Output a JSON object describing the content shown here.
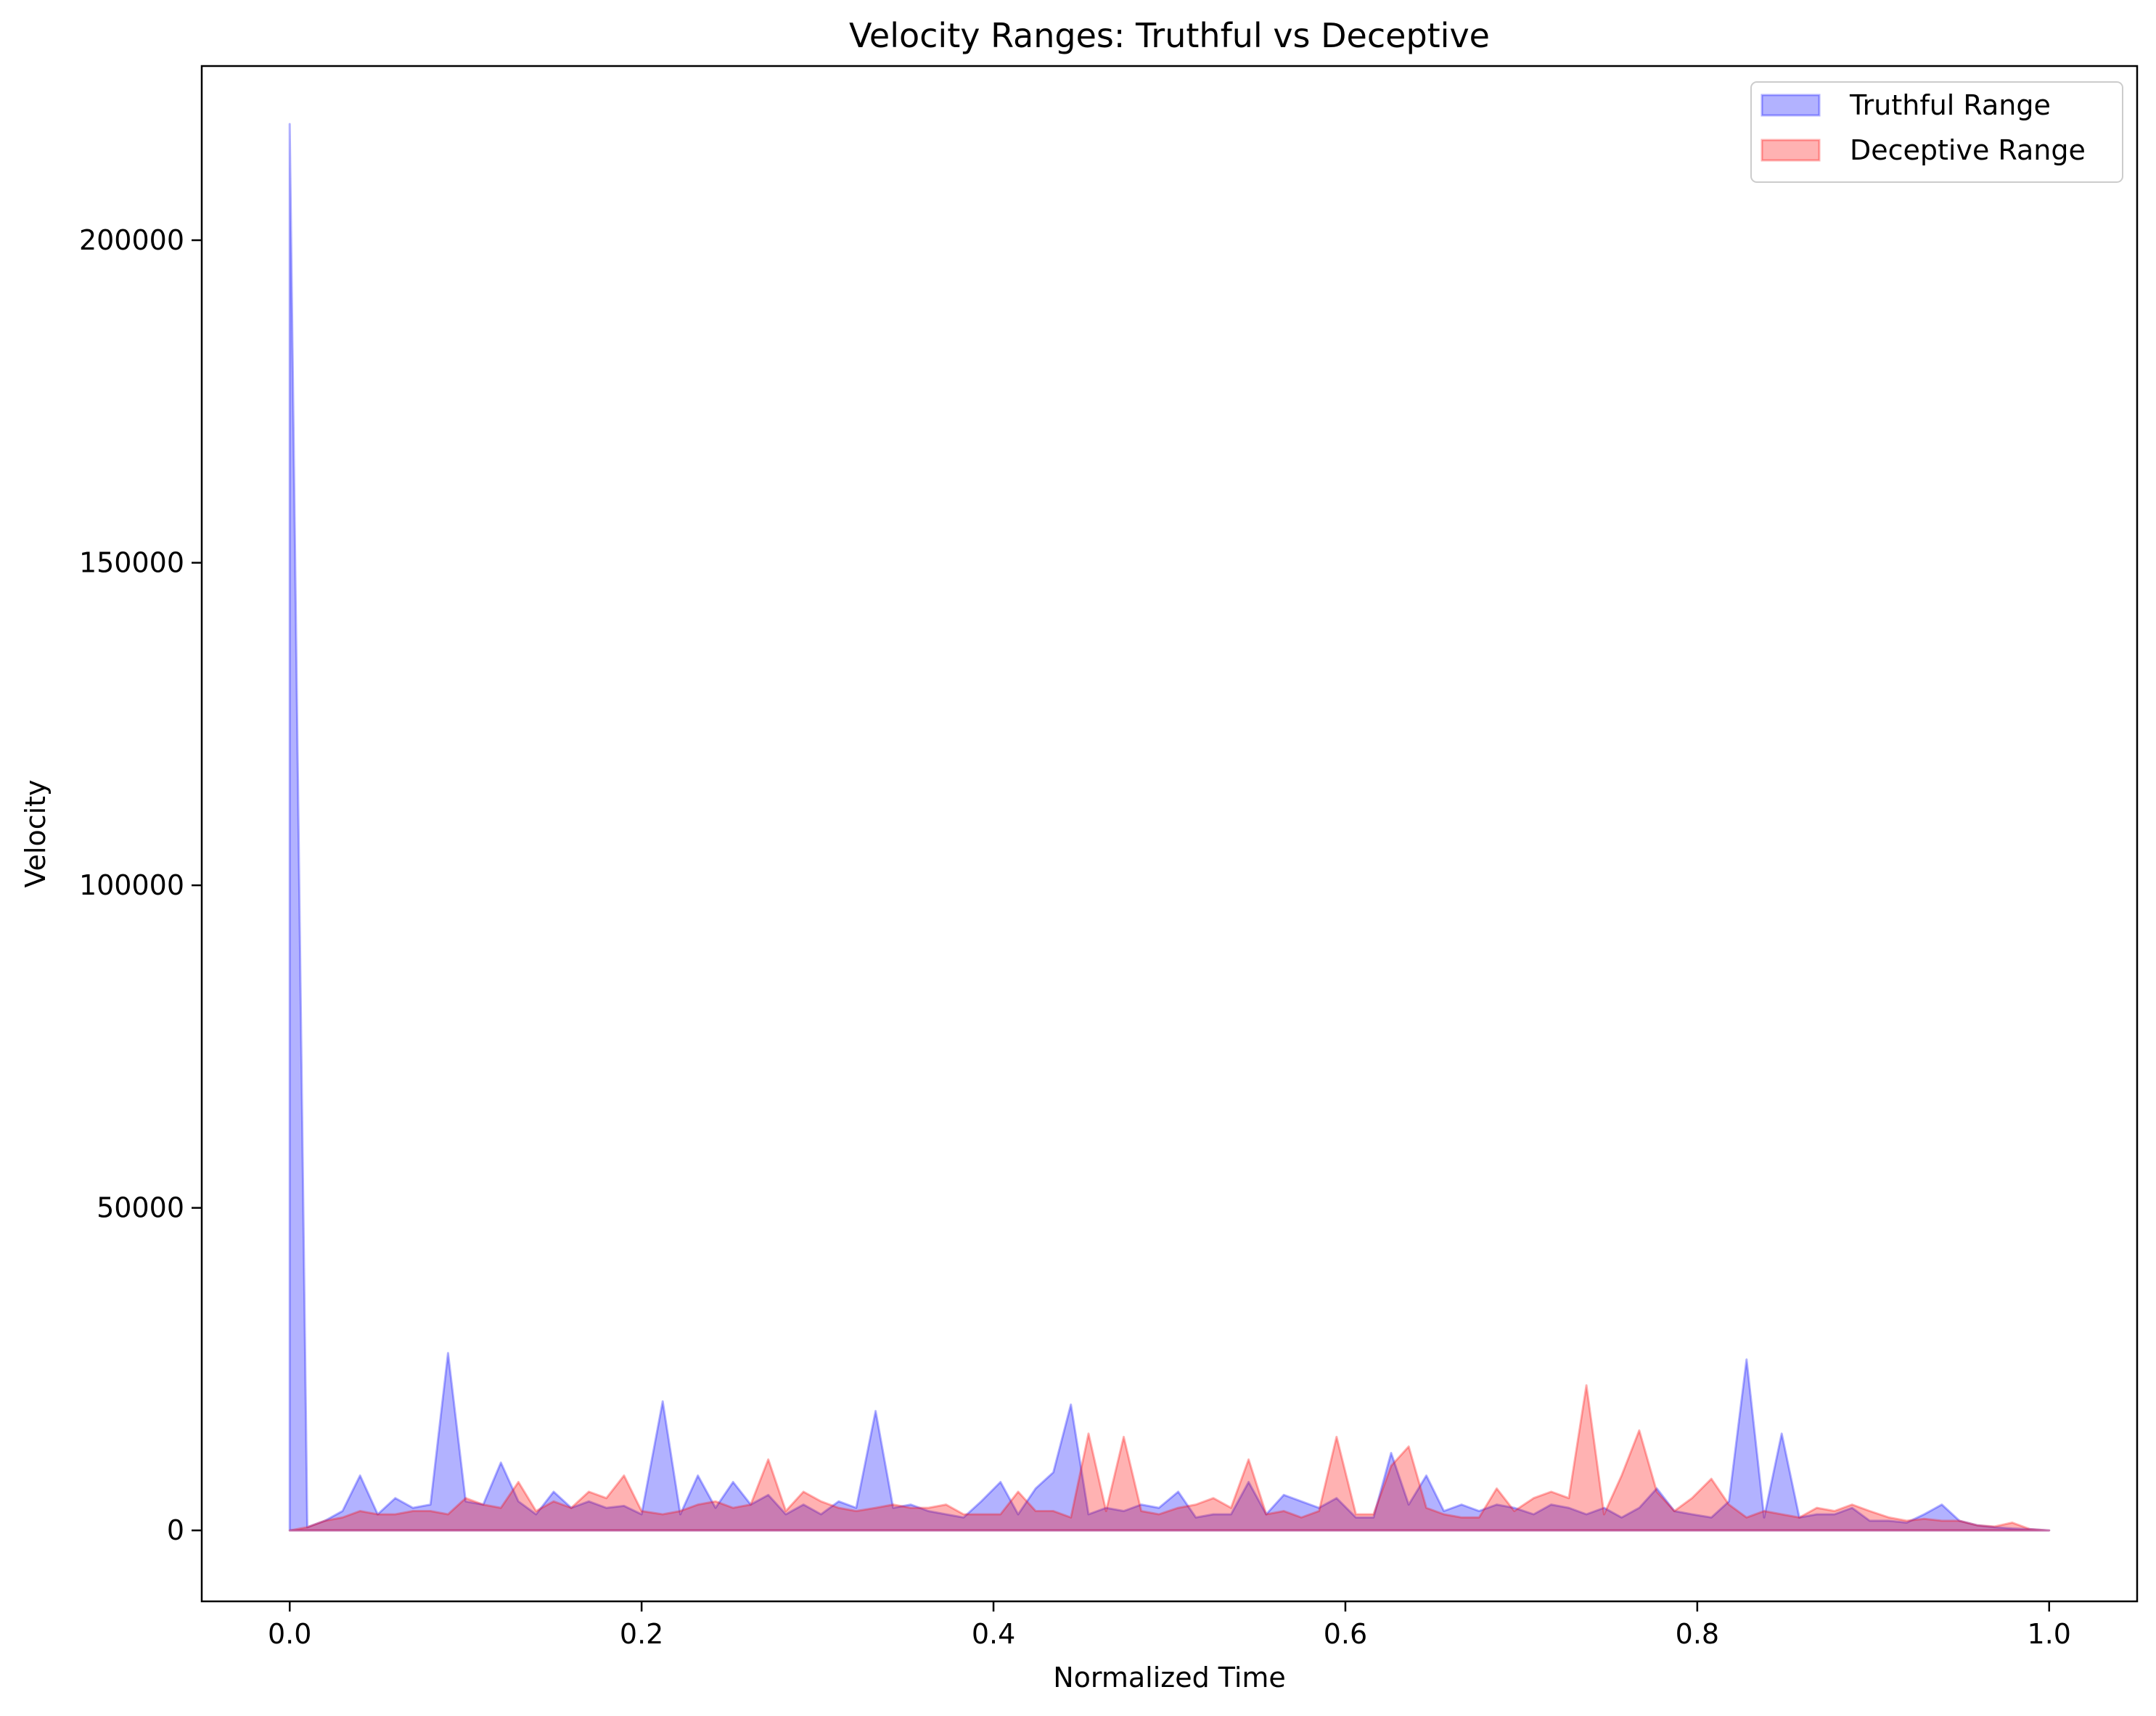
{
  "chart_data": {
    "type": "area",
    "title": "Velocity Ranges: Truthful vs Deceptive",
    "xlabel": "Normalized Time",
    "ylabel": "Velocity",
    "xlim": [
      -0.05,
      1.05
    ],
    "ylim": [
      -11000,
      227000
    ],
    "xticks": [
      0.0,
      0.2,
      0.4,
      0.6,
      0.8,
      1.0
    ],
    "xtick_labels": [
      "0.0",
      "0.2",
      "0.4",
      "0.6",
      "0.8",
      "1.0"
    ],
    "yticks": [
      0,
      50000,
      100000,
      150000,
      200000
    ],
    "ytick_labels": [
      "0",
      "50000",
      "100000",
      "150000",
      "200000"
    ],
    "grid": false,
    "legend_position": "top-right",
    "series": [
      {
        "name": "Truthful Range",
        "color": "#0000ff",
        "points": [
          [
            0.0,
            0
          ],
          [
            0.0,
            218000
          ],
          [
            0.01,
            500
          ],
          [
            0.02,
            1500
          ],
          [
            0.03,
            3000
          ],
          [
            0.04,
            8500
          ],
          [
            0.05,
            2500
          ],
          [
            0.06,
            5000
          ],
          [
            0.07,
            3500
          ],
          [
            0.08,
            4000
          ],
          [
            0.09,
            27500
          ],
          [
            0.1,
            4500
          ],
          [
            0.11,
            4000
          ],
          [
            0.12,
            10500
          ],
          [
            0.13,
            4500
          ],
          [
            0.14,
            2500
          ],
          [
            0.15,
            6000
          ],
          [
            0.16,
            3500
          ],
          [
            0.17,
            4500
          ],
          [
            0.18,
            3500
          ],
          [
            0.19,
            3800
          ],
          [
            0.2,
            2500
          ],
          [
            0.212,
            20000
          ],
          [
            0.222,
            2500
          ],
          [
            0.232,
            8500
          ],
          [
            0.242,
            3500
          ],
          [
            0.252,
            7500
          ],
          [
            0.262,
            4000
          ],
          [
            0.272,
            5500
          ],
          [
            0.282,
            2500
          ],
          [
            0.292,
            4000
          ],
          [
            0.302,
            2500
          ],
          [
            0.312,
            4500
          ],
          [
            0.322,
            3500
          ],
          [
            0.333,
            18500
          ],
          [
            0.343,
            3500
          ],
          [
            0.353,
            4000
          ],
          [
            0.363,
            3000
          ],
          [
            0.373,
            2500
          ],
          [
            0.383,
            2000
          ],
          [
            0.393,
            4500
          ],
          [
            0.404,
            7500
          ],
          [
            0.414,
            2500
          ],
          [
            0.424,
            6500
          ],
          [
            0.434,
            9000
          ],
          [
            0.444,
            19500
          ],
          [
            0.454,
            2500
          ],
          [
            0.464,
            3500
          ],
          [
            0.474,
            3000
          ],
          [
            0.484,
            4000
          ],
          [
            0.494,
            3500
          ],
          [
            0.505,
            6000
          ],
          [
            0.515,
            2000
          ],
          [
            0.525,
            2500
          ],
          [
            0.535,
            2500
          ],
          [
            0.545,
            7500
          ],
          [
            0.555,
            2500
          ],
          [
            0.565,
            5500
          ],
          [
            0.575,
            4500
          ],
          [
            0.585,
            3500
          ],
          [
            0.595,
            5000
          ],
          [
            0.606,
            2000
          ],
          [
            0.616,
            2000
          ],
          [
            0.626,
            12000
          ],
          [
            0.636,
            4000
          ],
          [
            0.646,
            8500
          ],
          [
            0.656,
            3000
          ],
          [
            0.666,
            4000
          ],
          [
            0.676,
            3000
          ],
          [
            0.686,
            4000
          ],
          [
            0.696,
            3500
          ],
          [
            0.707,
            2500
          ],
          [
            0.717,
            4000
          ],
          [
            0.727,
            3500
          ],
          [
            0.737,
            2500
          ],
          [
            0.747,
            3500
          ],
          [
            0.757,
            2000
          ],
          [
            0.767,
            3500
          ],
          [
            0.777,
            6500
          ],
          [
            0.787,
            3000
          ],
          [
            0.797,
            2500
          ],
          [
            0.808,
            2000
          ],
          [
            0.818,
            4500
          ],
          [
            0.828,
            26500
          ],
          [
            0.838,
            2000
          ],
          [
            0.848,
            15000
          ],
          [
            0.858,
            2000
          ],
          [
            0.868,
            2500
          ],
          [
            0.878,
            2500
          ],
          [
            0.888,
            3500
          ],
          [
            0.898,
            1500
          ],
          [
            0.909,
            1500
          ],
          [
            0.919,
            1200
          ],
          [
            0.929,
            2500
          ],
          [
            0.939,
            4000
          ],
          [
            0.949,
            1500
          ],
          [
            0.959,
            800
          ],
          [
            0.969,
            500
          ],
          [
            0.979,
            300
          ],
          [
            0.989,
            200
          ],
          [
            1.0,
            0
          ]
        ]
      },
      {
        "name": "Deceptive Range",
        "color": "#ff0000",
        "points": [
          [
            0.0,
            0
          ],
          [
            0.01,
            500
          ],
          [
            0.02,
            1500
          ],
          [
            0.03,
            2000
          ],
          [
            0.04,
            3000
          ],
          [
            0.05,
            2500
          ],
          [
            0.06,
            2500
          ],
          [
            0.07,
            3000
          ],
          [
            0.08,
            3000
          ],
          [
            0.09,
            2500
          ],
          [
            0.1,
            5000
          ],
          [
            0.11,
            4000
          ],
          [
            0.12,
            3500
          ],
          [
            0.13,
            7500
          ],
          [
            0.14,
            3000
          ],
          [
            0.15,
            4500
          ],
          [
            0.16,
            3500
          ],
          [
            0.17,
            6000
          ],
          [
            0.18,
            5000
          ],
          [
            0.19,
            8500
          ],
          [
            0.2,
            3000
          ],
          [
            0.212,
            2500
          ],
          [
            0.222,
            3000
          ],
          [
            0.232,
            4000
          ],
          [
            0.242,
            4500
          ],
          [
            0.252,
            3500
          ],
          [
            0.262,
            4000
          ],
          [
            0.272,
            11000
          ],
          [
            0.282,
            3000
          ],
          [
            0.292,
            6000
          ],
          [
            0.302,
            4500
          ],
          [
            0.312,
            3500
          ],
          [
            0.322,
            3000
          ],
          [
            0.333,
            3500
          ],
          [
            0.343,
            4000
          ],
          [
            0.353,
            3500
          ],
          [
            0.363,
            3500
          ],
          [
            0.373,
            4000
          ],
          [
            0.383,
            2500
          ],
          [
            0.393,
            2500
          ],
          [
            0.404,
            2500
          ],
          [
            0.414,
            6000
          ],
          [
            0.424,
            3000
          ],
          [
            0.434,
            3000
          ],
          [
            0.444,
            2000
          ],
          [
            0.454,
            15000
          ],
          [
            0.464,
            3000
          ],
          [
            0.474,
            14500
          ],
          [
            0.484,
            3000
          ],
          [
            0.494,
            2500
          ],
          [
            0.505,
            3500
          ],
          [
            0.515,
            4000
          ],
          [
            0.525,
            5000
          ],
          [
            0.535,
            3500
          ],
          [
            0.545,
            11000
          ],
          [
            0.555,
            2500
          ],
          [
            0.565,
            3000
          ],
          [
            0.575,
            2000
          ],
          [
            0.585,
            3000
          ],
          [
            0.595,
            14500
          ],
          [
            0.606,
            2500
          ],
          [
            0.616,
            2500
          ],
          [
            0.626,
            10000
          ],
          [
            0.636,
            13000
          ],
          [
            0.646,
            3500
          ],
          [
            0.656,
            2500
          ],
          [
            0.666,
            2000
          ],
          [
            0.676,
            2000
          ],
          [
            0.686,
            6500
          ],
          [
            0.696,
            3000
          ],
          [
            0.707,
            5000
          ],
          [
            0.717,
            6000
          ],
          [
            0.727,
            5000
          ],
          [
            0.737,
            22500
          ],
          [
            0.747,
            2500
          ],
          [
            0.757,
            8500
          ],
          [
            0.767,
            15500
          ],
          [
            0.777,
            6000
          ],
          [
            0.787,
            3000
          ],
          [
            0.797,
            5000
          ],
          [
            0.808,
            8000
          ],
          [
            0.818,
            4000
          ],
          [
            0.828,
            2000
          ],
          [
            0.838,
            3000
          ],
          [
            0.848,
            2500
          ],
          [
            0.858,
            2000
          ],
          [
            0.868,
            3500
          ],
          [
            0.878,
            3000
          ],
          [
            0.888,
            4000
          ],
          [
            0.898,
            3000
          ],
          [
            0.909,
            2000
          ],
          [
            0.919,
            1500
          ],
          [
            0.929,
            1800
          ],
          [
            0.939,
            1500
          ],
          [
            0.949,
            1500
          ],
          [
            0.959,
            800
          ],
          [
            0.969,
            600
          ],
          [
            0.979,
            1200
          ],
          [
            0.989,
            200
          ],
          [
            1.0,
            0
          ]
        ]
      }
    ]
  }
}
